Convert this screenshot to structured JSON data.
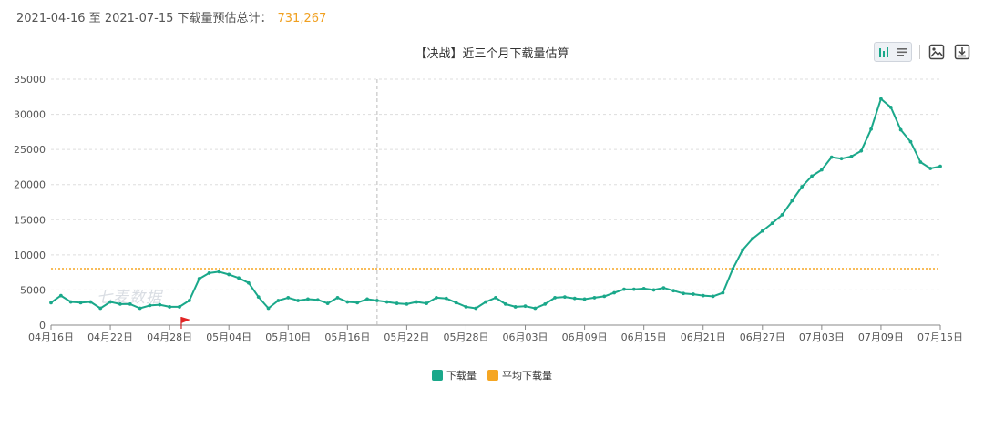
{
  "summary": {
    "range": "2021-04-16 至 2021-07-15 下载量预估总计：",
    "total": "731,267"
  },
  "watermark": "七麦数据",
  "toolbar": {
    "icons": [
      "bar-chart-icon",
      "list-icon",
      "image-icon",
      "download-icon"
    ]
  },
  "colors": {
    "line": "#1aa88a",
    "average": "#f5a623",
    "grid": "#dddddd"
  },
  "chart_data": {
    "type": "line",
    "title": "【决战】近三个月下载量估算",
    "ylim": [
      0,
      35000
    ],
    "y_ticks": [
      "0",
      "5000",
      "10000",
      "15000",
      "20000",
      "25000",
      "30000",
      "35000"
    ],
    "x_tick_labels": [
      "04月16日",
      "04月22日",
      "04月28日",
      "05月04日",
      "05月10日",
      "05月16日",
      "05月22日",
      "05月28日",
      "06月03日",
      "06月09日",
      "06月15日",
      "06月21日",
      "06月27日",
      "07月03日",
      "07月09日",
      "07月15日"
    ],
    "x_tick_step": 6,
    "grid": true,
    "legend_position": "bottom",
    "marker_index": 13,
    "crosshair_index": 33,
    "series": [
      {
        "name": "下载量",
        "values": [
          3200,
          4200,
          3300,
          3200,
          3300,
          2400,
          3300,
          3000,
          3000,
          2400,
          2800,
          2900,
          2600,
          2600,
          3500,
          6600,
          7400,
          7600,
          7200,
          6700,
          6000,
          4000,
          2400,
          3500,
          3900,
          3500,
          3700,
          3600,
          3100,
          3900,
          3300,
          3200,
          3700,
          3500,
          3300,
          3100,
          3000,
          3300,
          3100,
          3900,
          3800,
          3200,
          2600,
          2400,
          3300,
          3900,
          3000,
          2600,
          2700,
          2400,
          3000,
          3900,
          4000,
          3800,
          3700,
          3900,
          4100,
          4600,
          5100,
          5100,
          5200,
          5000,
          5300,
          4900,
          4500,
          4400,
          4200,
          4100,
          4600,
          8000,
          10700,
          12300,
          13400,
          14500,
          15700,
          17700,
          19700,
          21200,
          22100,
          23900,
          23700,
          24000,
          24800,
          27900,
          32200,
          31000,
          27800,
          26100,
          23200,
          22300,
          22600
        ]
      },
      {
        "name": "平均下载量",
        "values": [
          8036
        ]
      }
    ]
  },
  "legend": [
    {
      "label": "下载量",
      "color": "#1aa88a"
    },
    {
      "label": "平均下载量",
      "color": "#f5a623"
    }
  ]
}
